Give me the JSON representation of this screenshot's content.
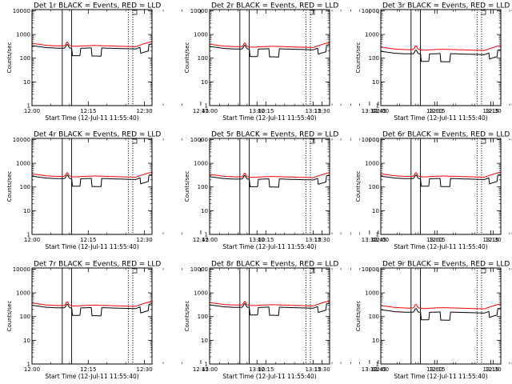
{
  "figure": {
    "title_suffix": "BLACK = Events, RED = LLD",
    "xlabel": "Start Time (12-Jul-11 11:55:40)",
    "ylabel": "Counts/sec",
    "x_ticks": [
      "12:00",
      "12:15",
      "12:30",
      "12:45",
      "13:00",
      "13:15",
      "13:30"
    ],
    "y_ticks": [
      "1",
      "10",
      "100",
      "1000",
      "10000"
    ],
    "colors": {
      "events": "#000000",
      "lld": "#ff0000",
      "axes": "#000000"
    }
  },
  "chart_data": [
    {
      "type": "line",
      "title_prefix": "Det 1r",
      "xlim": [
        4.33,
        36.33
      ],
      "ylim_log10": [
        0,
        4.05
      ],
      "solid_markers": [
        12.4,
        14.9
      ],
      "dotted_markers": [
        30.0,
        31.2
      ],
      "events_base": 260,
      "lld_ratio": 1.25
    },
    {
      "type": "line",
      "title_prefix": "Det 2r",
      "xlim": [
        4.33,
        36.33
      ],
      "ylim_log10": [
        0,
        4.05
      ],
      "solid_markers": [
        12.4,
        14.9
      ],
      "dotted_markers": [
        30.0,
        31.2
      ],
      "events_base": 240,
      "lld_ratio": 1.25
    },
    {
      "type": "line",
      "title_prefix": "Det 3r",
      "xlim": [
        4.33,
        36.33
      ],
      "ylim_log10": [
        0,
        4.05
      ],
      "solid_markers": [
        12.4,
        14.9
      ],
      "dotted_markers": [
        30.0,
        31.2
      ],
      "events_base": 150,
      "lld_ratio": 1.5
    },
    {
      "type": "line",
      "title_prefix": "Det 4r",
      "xlim": [
        4.33,
        36.33
      ],
      "ylim_log10": [
        0,
        4.05
      ],
      "solid_markers": [
        12.4,
        14.9
      ],
      "dotted_markers": [
        30.0,
        31.2
      ],
      "events_base": 220,
      "lld_ratio": 1.25
    },
    {
      "type": "line",
      "title_prefix": "Det 5r",
      "xlim": [
        4.33,
        36.33
      ],
      "ylim_log10": [
        0,
        4.05
      ],
      "solid_markers": [
        12.4,
        14.9
      ],
      "dotted_markers": [
        30.0,
        31.2
      ],
      "events_base": 210,
      "lld_ratio": 1.25
    },
    {
      "type": "line",
      "title_prefix": "Det 6r",
      "xlim": [
        4.33,
        36.33
      ],
      "ylim_log10": [
        0,
        4.05
      ],
      "solid_markers": [
        12.4,
        14.9
      ],
      "dotted_markers": [
        30.0,
        31.2
      ],
      "events_base": 220,
      "lld_ratio": 1.25
    },
    {
      "type": "line",
      "title_prefix": "Det 7r",
      "xlim": [
        4.33,
        36.33
      ],
      "ylim_log10": [
        0,
        4.05
      ],
      "solid_markers": [
        12.4,
        14.9
      ],
      "dotted_markers": [
        30.0,
        31.2
      ],
      "events_base": 230,
      "lld_ratio": 1.25
    },
    {
      "type": "line",
      "title_prefix": "Det 8r",
      "xlim": [
        4.33,
        36.33
      ],
      "ylim_log10": [
        0,
        4.05
      ],
      "solid_markers": [
        12.4,
        14.9
      ],
      "dotted_markers": [
        30.0,
        31.2
      ],
      "events_base": 240,
      "lld_ratio": 1.25
    },
    {
      "type": "line",
      "title_prefix": "Det 9r",
      "xlim": [
        4.33,
        36.33
      ],
      "ylim_log10": [
        0,
        4.05
      ],
      "solid_markers": [
        12.4,
        14.9
      ],
      "dotted_markers": [
        30.0,
        31.2
      ],
      "events_base": 150,
      "lld_ratio": 1.5
    }
  ]
}
